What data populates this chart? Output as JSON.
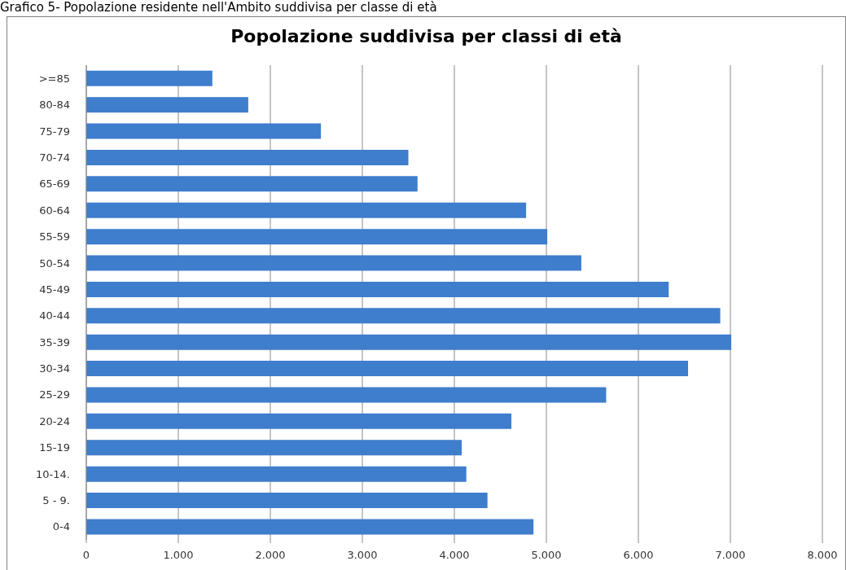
{
  "chart_data": {
    "type": "bar",
    "orientation": "horizontal",
    "title": "Popolazione suddivisa per classi di età",
    "annotations": [
      "Grafico 5- Popolazione residente nell'Ambito suddivisa per classe di età"
    ],
    "categories": [
      ">=85",
      "80-84",
      "75-79",
      "70-74",
      "65-69",
      "60-64",
      "55-59",
      "50-54",
      "45-49",
      "40-44",
      "35-39",
      "30-34",
      "25-29",
      "20-24",
      "15-19",
      "10-14.",
      "5 - 9.",
      "0-4"
    ],
    "values": [
      1370,
      1760,
      2550,
      3500,
      3600,
      4780,
      5010,
      5380,
      6330,
      6890,
      7010,
      6540,
      5650,
      4620,
      4080,
      4130,
      4360,
      4860
    ],
    "color": "#3f7dcd",
    "xlim": [
      0,
      8000
    ],
    "xticks": [
      0,
      {
        "value": 1000,
        "label": "1.000"
      },
      {
        "value": 2000,
        "label": "2.000"
      },
      {
        "value": 3000,
        "label": "3.000"
      },
      {
        "value": 4000,
        "label": "4.000"
      },
      {
        "value": 5000,
        "label": "5.000"
      },
      {
        "value": 6000,
        "label": "6.000"
      },
      {
        "value": 7000,
        "label": "7.000"
      },
      {
        "value": 8000,
        "label": "8.000"
      }
    ],
    "grid": "x"
  }
}
